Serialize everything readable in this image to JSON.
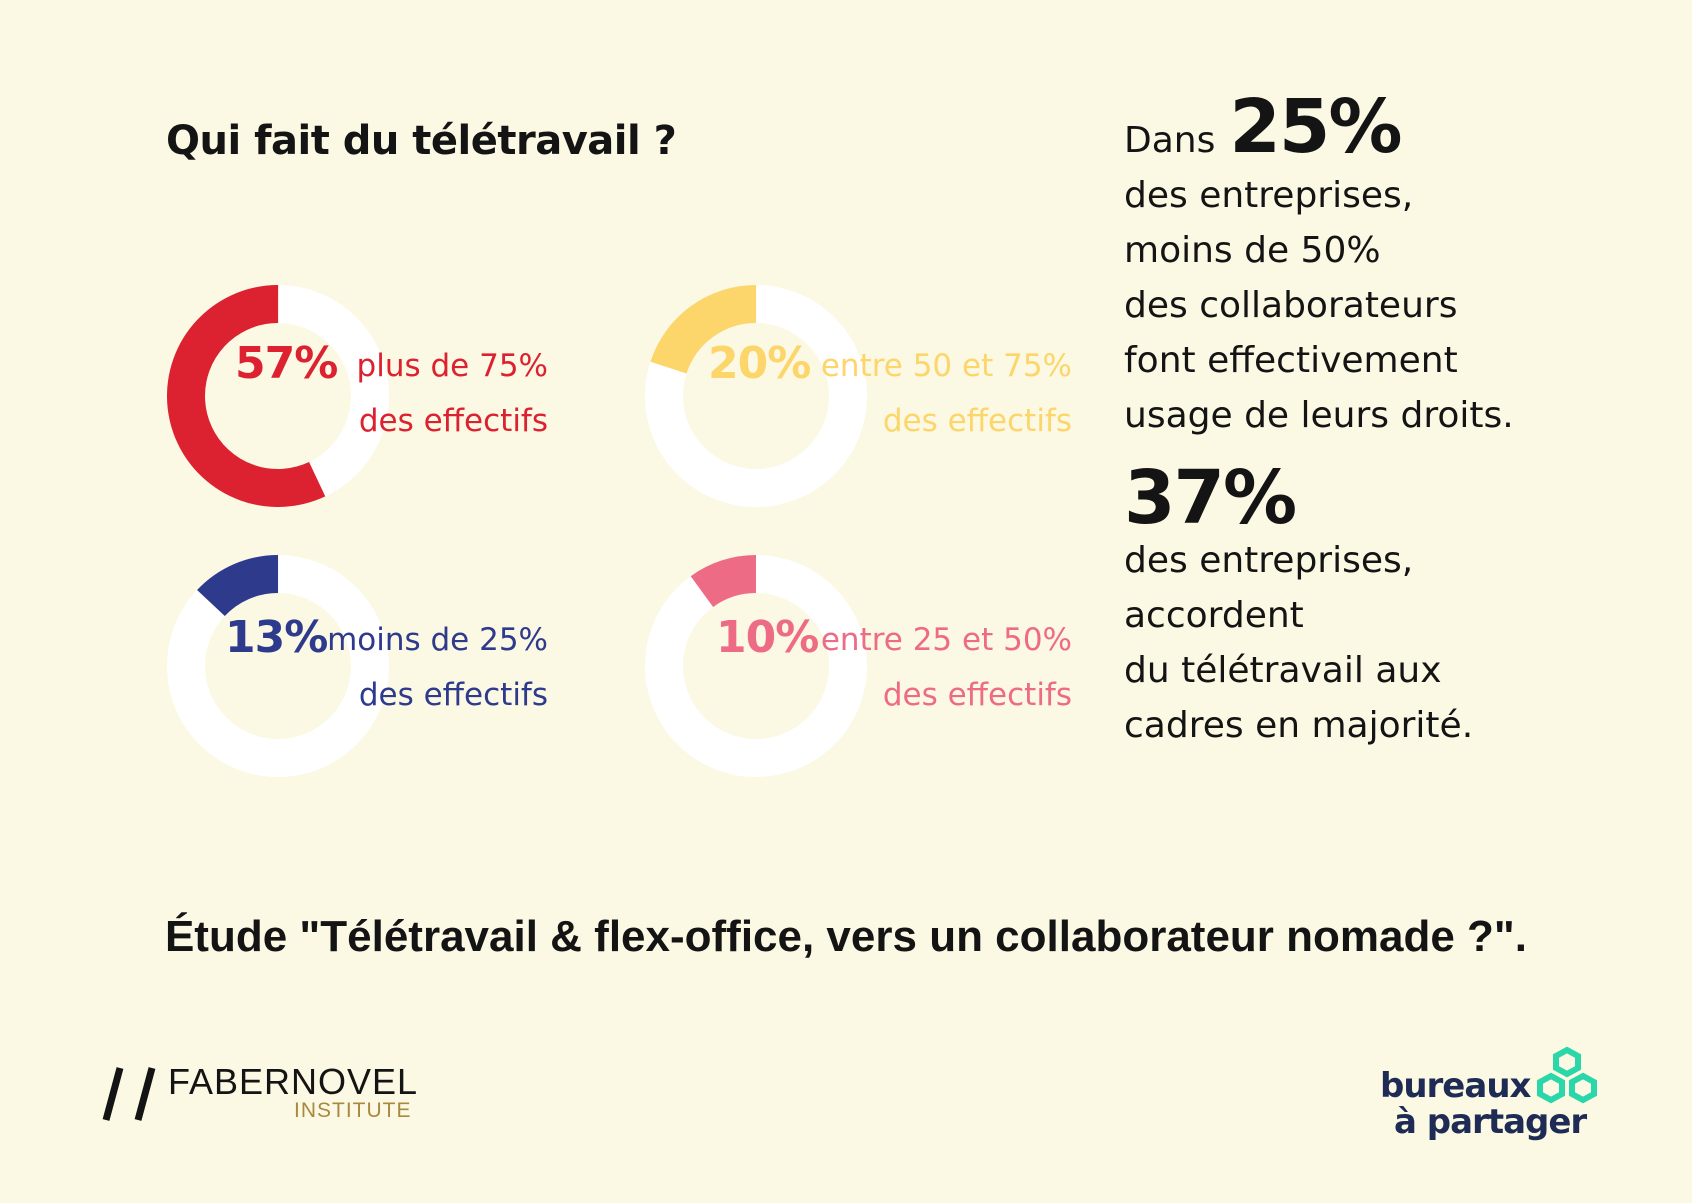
{
  "title": "Qui fait du télétravail ?",
  "chart_data": {
    "type": "pie",
    "series": [
      {
        "value": 57,
        "pct_label": "57%",
        "label_line1": "plus de 75%",
        "label_line2": "des effectifs",
        "color": "#dc2230"
      },
      {
        "value": 20,
        "pct_label": "20%",
        "label_line1": "entre 50 et 75%",
        "label_line2": "des effectifs",
        "color": "#fcd66a"
      },
      {
        "value": 13,
        "pct_label": "13%",
        "label_line1": "moins de 25%",
        "label_line2": "des effectifs",
        "color": "#2e3a8c"
      },
      {
        "value": 10,
        "pct_label": "10%",
        "label_line1": "entre 25 et 50%",
        "label_line2": "des effectifs",
        "color": "#ee6b86"
      }
    ],
    "track_color": "#ffffff"
  },
  "stats": {
    "stat1": {
      "prefix": "Dans",
      "big": "25%",
      "lines": [
        "des entreprises,",
        "moins de 50%",
        "des collaborateurs",
        "font effectivement",
        "usage de leurs droits."
      ]
    },
    "stat2": {
      "big": "37%",
      "lines": [
        "des entreprises,",
        "accordent",
        "du télétravail aux",
        "cadres en majorité."
      ]
    }
  },
  "footer": {
    "study": "Étude \"Télétravail & flex-office, vers un collaborateur nomade ?\"."
  },
  "logos": {
    "fabernovel": {
      "name": "FABERNOVEL",
      "sub": "INSTITUTE"
    },
    "bap": {
      "line1": "bureaux",
      "line2": "à partager",
      "color": "#2bd6a8"
    }
  }
}
